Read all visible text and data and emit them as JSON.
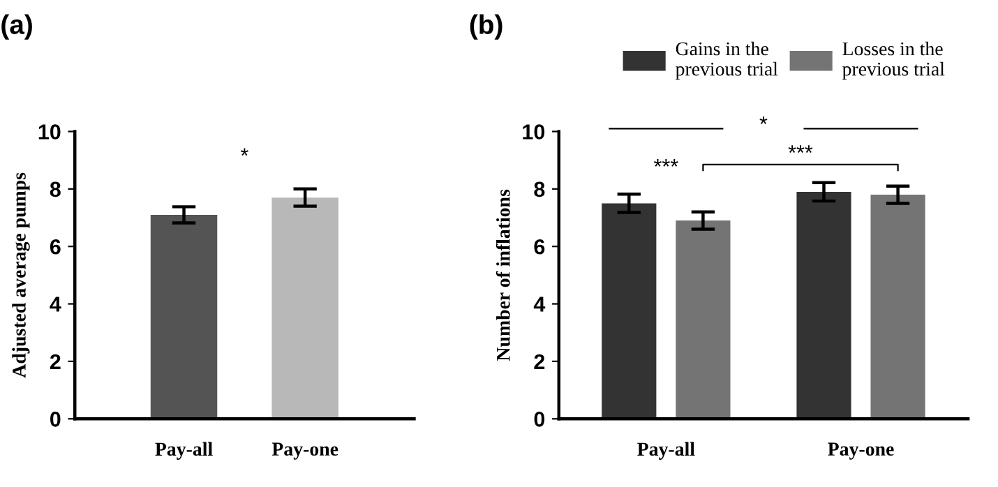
{
  "chart_data": [
    {
      "type": "bar",
      "title": "(a)",
      "ylabel": "Adjusted average pumps",
      "categories": [
        "Pay-all",
        "Pay-one"
      ],
      "values": [
        7.1,
        7.7
      ],
      "errors": [
        0.28,
        0.3
      ],
      "colors": [
        "#545454",
        "#b8b8b8"
      ],
      "ylim": [
        0,
        10
      ],
      "yticks": [
        0,
        2,
        4,
        6,
        8,
        10
      ],
      "grid": false,
      "legend": false,
      "annotations": [
        "*"
      ]
    },
    {
      "type": "bar",
      "title": "(b)",
      "ylabel": "Number of inflations",
      "categories": [
        "Pay-all",
        "Pay-one"
      ],
      "series": [
        {
          "name": "Gains in the\nprevious trial",
          "color": "#333333",
          "values": [
            7.5,
            7.9
          ],
          "errors": [
            0.32,
            0.32
          ]
        },
        {
          "name": "Losses in the\nprevious trial",
          "color": "#747474",
          "values": [
            6.9,
            7.8
          ],
          "errors": [
            0.3,
            0.3
          ]
        }
      ],
      "ylim": [
        0,
        10
      ],
      "yticks": [
        0,
        2,
        4,
        6,
        8,
        10
      ],
      "grid": false,
      "legend": "top",
      "annotations": [
        "***",
        "*",
        "***"
      ]
    }
  ]
}
